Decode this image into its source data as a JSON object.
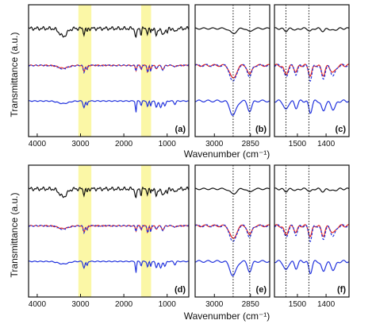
{
  "figure": {
    "ylabel": "Transmittance (a.u.)",
    "xlabel": "Wavenumber (cm⁻¹)"
  },
  "colors": {
    "black": "#111111",
    "red": "#e8261e",
    "blue": "#2233dd",
    "highlight": "#fbf7a6"
  },
  "chart_data": [
    {
      "type": "line",
      "panel": "a",
      "xlim": [
        4200,
        500
      ],
      "x_reversed": true,
      "x_ticks": [
        "4000",
        "3000",
        "2000",
        "1000"
      ],
      "x_tick_values": [
        4000,
        3000,
        2000,
        1000
      ],
      "highlight_bands": [
        [
          3050,
          2750
        ],
        [
          1600,
          1370
        ]
      ],
      "series": [
        {
          "color": "black",
          "style": "solid",
          "offset": 0.85
        },
        {
          "color": "red",
          "style": "solid",
          "offset": 0.5
        },
        {
          "color": "blue",
          "style": "dashed",
          "offset": 0.5
        },
        {
          "color": "blue",
          "style": "solid",
          "offset": 0.15
        }
      ]
    },
    {
      "type": "line",
      "panel": "b",
      "xlim": [
        3080,
        2770
      ],
      "x_reversed": true,
      "x_ticks": [
        "3000",
        "2850"
      ],
      "x_tick_values": [
        3000,
        2850
      ],
      "vlines": [
        2922,
        2853
      ],
      "series": [
        {
          "color": "black",
          "style": "solid"
        },
        {
          "color": "red",
          "style": "solid"
        },
        {
          "color": "blue",
          "style": "dashed"
        },
        {
          "color": "blue",
          "style": "solid"
        }
      ]
    },
    {
      "type": "line",
      "panel": "c",
      "xlim": [
        1580,
        1320
      ],
      "x_reversed": true,
      "x_ticks": [
        "1500",
        "1400"
      ],
      "x_tick_values": [
        1500,
        1400
      ],
      "vlines": [
        1540,
        1460
      ],
      "series": [
        {
          "color": "black",
          "style": "solid"
        },
        {
          "color": "red",
          "style": "solid"
        },
        {
          "color": "blue",
          "style": "dashed"
        },
        {
          "color": "blue",
          "style": "solid"
        }
      ]
    },
    {
      "type": "line",
      "panel": "d",
      "xlim": [
        4200,
        500
      ],
      "x_reversed": true,
      "x_ticks": [
        "4000",
        "3000",
        "2000",
        "1000"
      ],
      "x_tick_values": [
        4000,
        3000,
        2000,
        1000
      ],
      "highlight_bands": [
        [
          3050,
          2750
        ],
        [
          1600,
          1370
        ]
      ],
      "series": [
        {
          "color": "black",
          "style": "solid"
        },
        {
          "color": "red",
          "style": "solid"
        },
        {
          "color": "blue",
          "style": "dashed"
        },
        {
          "color": "blue",
          "style": "solid"
        }
      ]
    },
    {
      "type": "line",
      "panel": "e",
      "xlim": [
        3080,
        2770
      ],
      "x_reversed": true,
      "x_ticks": [
        "3000",
        "2850"
      ],
      "x_tick_values": [
        3000,
        2850
      ],
      "vlines": [
        2922,
        2853
      ],
      "series": [
        {
          "color": "black",
          "style": "solid"
        },
        {
          "color": "red",
          "style": "solid"
        },
        {
          "color": "blue",
          "style": "dashed"
        },
        {
          "color": "blue",
          "style": "solid"
        }
      ]
    },
    {
      "type": "line",
      "panel": "f",
      "xlim": [
        1580,
        1320
      ],
      "x_reversed": true,
      "x_ticks": [
        "1500",
        "1400"
      ],
      "x_tick_values": [
        1500,
        1400
      ],
      "vlines": [
        1540,
        1460
      ],
      "series": [
        {
          "color": "black",
          "style": "solid"
        },
        {
          "color": "red",
          "style": "solid"
        },
        {
          "color": "blue",
          "style": "dashed"
        },
        {
          "color": "blue",
          "style": "solid"
        }
      ]
    }
  ],
  "panel_labels": [
    "(a)",
    "(b)",
    "(c)",
    "(d)",
    "(e)",
    "(f)"
  ]
}
